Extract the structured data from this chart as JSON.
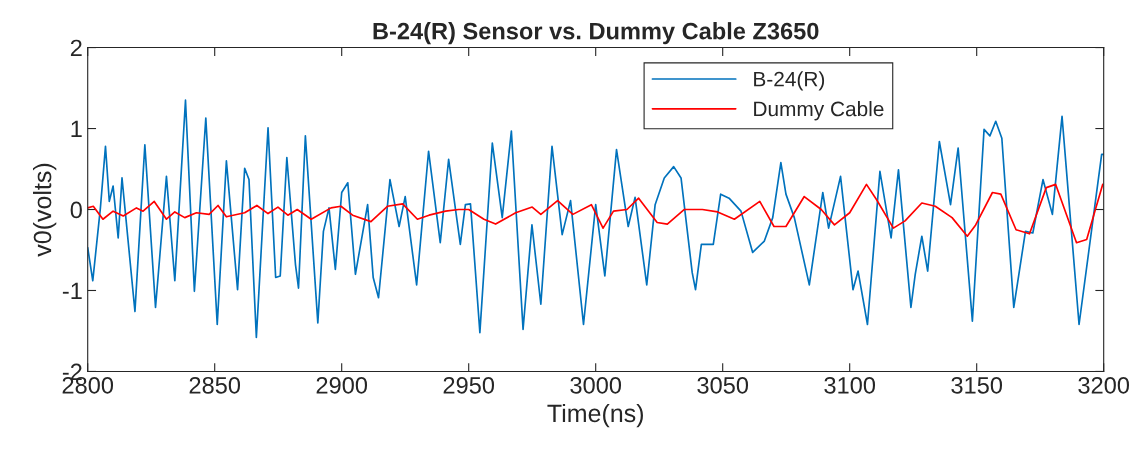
{
  "chart_data": {
    "type": "line",
    "title": "B-24(R) Sensor vs. Dummy Cable Z3650",
    "xlabel": "Time(ns)",
    "ylabel": "v0(volts)",
    "xlim": [
      2800,
      3200
    ],
    "xticks": [
      2800,
      2850,
      2900,
      2950,
      3000,
      3050,
      3100,
      3150,
      3200
    ],
    "ylim": [
      -2,
      2
    ],
    "yticks": [
      -2,
      -1,
      0,
      1,
      2
    ],
    "grid": false,
    "legend": "top",
    "line_style": "solid",
    "marker": "none",
    "series": [
      {
        "name": "B-24(R)",
        "color": "#0072bd",
        "x": [
          2800,
          2802,
          2805,
          2807,
          2808.5,
          2810,
          2812,
          2813.5,
          2818.6,
          2822.5,
          2826.7,
          2831,
          2834.3,
          2838.5,
          2842,
          2846.5,
          2851,
          2854.6,
          2859,
          2861.8,
          2863.5,
          2866.4,
          2871,
          2874,
          2875.8,
          2878.4,
          2881.8,
          2883,
          2885.7,
          2890.6,
          2892.8,
          2895,
          2897.5,
          2900,
          2902.4,
          2905.4,
          2910.2,
          2912.4,
          2914.5,
          2919,
          2922.6,
          2925,
          2929.5,
          2934.2,
          2938.8,
          2942.1,
          2946.7,
          2948.7,
          2950.7,
          2954.4,
          2959.3,
          2963.2,
          2966.8,
          2971.4,
          2974.9,
          2978.4,
          2982.8,
          2986.8,
          2990.1,
          2995.2,
          3000,
          3003.6,
          3008.2,
          3012.8,
          3015.5,
          3020.1,
          3023.4,
          3027,
          3030.7,
          3033.6,
          3038,
          3039.3,
          3041.6,
          3046.3,
          3049.2,
          3052.5,
          3057.2,
          3061.8,
          3066.4,
          3069.7,
          3072.9,
          3074.9,
          3078.2,
          3084.1,
          3089.4,
          3091.7,
          3096.4,
          3101.3,
          3103.3,
          3107,
          3111.9,
          3116.3,
          3119.2,
          3124.1,
          3125.8,
          3128.4,
          3130.7,
          3135.3,
          3139.7,
          3142.7,
          3148.3,
          3152.9,
          3155.2,
          3157.5,
          3159.9,
          3164.6,
          3169.2,
          3172.1,
          3176.1,
          3179.8,
          3183.6,
          3190.3,
          3199.2,
          3200
        ],
        "values": [
          -0.47,
          -0.88,
          0.02,
          0.78,
          0.1,
          0.29,
          -0.35,
          0.39,
          -1.26,
          0.8,
          -1.21,
          0.41,
          -0.88,
          1.35,
          -1.01,
          1.13,
          -1.42,
          0.6,
          -0.99,
          0.51,
          0.37,
          -1.58,
          1.01,
          -0.84,
          -0.82,
          0.64,
          -0.68,
          -0.97,
          0.91,
          -1.4,
          -0.27,
          0.02,
          -0.74,
          0.21,
          0.33,
          -0.8,
          0.06,
          -0.84,
          -1.09,
          0.37,
          -0.21,
          0.16,
          -0.93,
          0.72,
          -0.41,
          0.62,
          -0.43,
          0.06,
          0.07,
          -1.52,
          0.82,
          -0.1,
          0.97,
          -1.48,
          -0.19,
          -1.17,
          0.78,
          -0.31,
          0.11,
          -1.42,
          0.06,
          -0.82,
          0.74,
          -0.21,
          0.15,
          -0.93,
          0.06,
          0.39,
          0.53,
          0.39,
          -0.78,
          -0.99,
          -0.43,
          -0.43,
          0.19,
          0.14,
          -0.02,
          -0.53,
          -0.39,
          -0.1,
          0.58,
          0.19,
          -0.1,
          -0.93,
          0.21,
          -0.23,
          0.41,
          -0.99,
          -0.76,
          -1.42,
          0.47,
          -0.35,
          0.49,
          -1.21,
          -0.8,
          -0.33,
          -0.76,
          0.84,
          0.06,
          0.76,
          -1.38,
          0.99,
          0.91,
          1.09,
          0.88,
          -1.21,
          -0.27,
          -0.29,
          0.37,
          -0.06,
          1.15,
          -1.42,
          0.68,
          0.68
        ]
      },
      {
        "name": "Dummy Cable",
        "color": "#ff0000",
        "x": [
          2800,
          2802.2,
          2806,
          2810,
          2814,
          2819.2,
          2821.8,
          2826.2,
          2831,
          2834.3,
          2838.2,
          2842.8,
          2847.8,
          2851.3,
          2854.6,
          2861.8,
          2866.6,
          2871,
          2874.9,
          2878.8,
          2882.5,
          2888,
          2895.8,
          2899.7,
          2904.3,
          2911.5,
          2918,
          2924,
          2929.8,
          2934.4,
          2940.9,
          2946,
          2950,
          2956,
          2960.6,
          2968.5,
          2975,
          2978.4,
          2985,
          2991,
          2998.3,
          3002.9,
          3007,
          3012.3,
          3016.9,
          3024.2,
          3028.2,
          3034.8,
          3042,
          3048,
          3054.6,
          3064.6,
          3070.2,
          3074.9,
          3082.1,
          3088.8,
          3094,
          3100,
          3106.6,
          3110.6,
          3117.2,
          3121.8,
          3128.4,
          3133.7,
          3140.3,
          3146.3,
          3149.6,
          3156.2,
          3159.5,
          3165.5,
          3170.8,
          3177.4,
          3181.1,
          3189.3,
          3193.3,
          3199.6
        ],
        "values": [
          0.02,
          0.04,
          -0.12,
          -0.02,
          -0.08,
          0.02,
          -0.02,
          0.1,
          -0.12,
          -0.03,
          -0.1,
          -0.04,
          -0.06,
          0.05,
          -0.09,
          -0.04,
          0.05,
          -0.05,
          0.03,
          -0.07,
          0.0,
          -0.12,
          0.02,
          0.04,
          -0.07,
          -0.15,
          0.04,
          0.07,
          -0.12,
          -0.07,
          -0.02,
          0.0,
          0.0,
          -0.12,
          -0.18,
          -0.04,
          0.03,
          -0.06,
          0.11,
          -0.06,
          0.06,
          -0.23,
          -0.02,
          0.0,
          0.14,
          -0.16,
          -0.18,
          0.0,
          0.0,
          -0.03,
          -0.12,
          0.1,
          -0.21,
          -0.21,
          0.16,
          0.0,
          -0.19,
          -0.04,
          0.31,
          0.12,
          -0.23,
          -0.14,
          0.08,
          0.04,
          -0.1,
          -0.33,
          -0.19,
          0.21,
          0.19,
          -0.25,
          -0.3,
          0.27,
          0.31,
          -0.41,
          -0.37,
          0.31
        ]
      }
    ]
  }
}
